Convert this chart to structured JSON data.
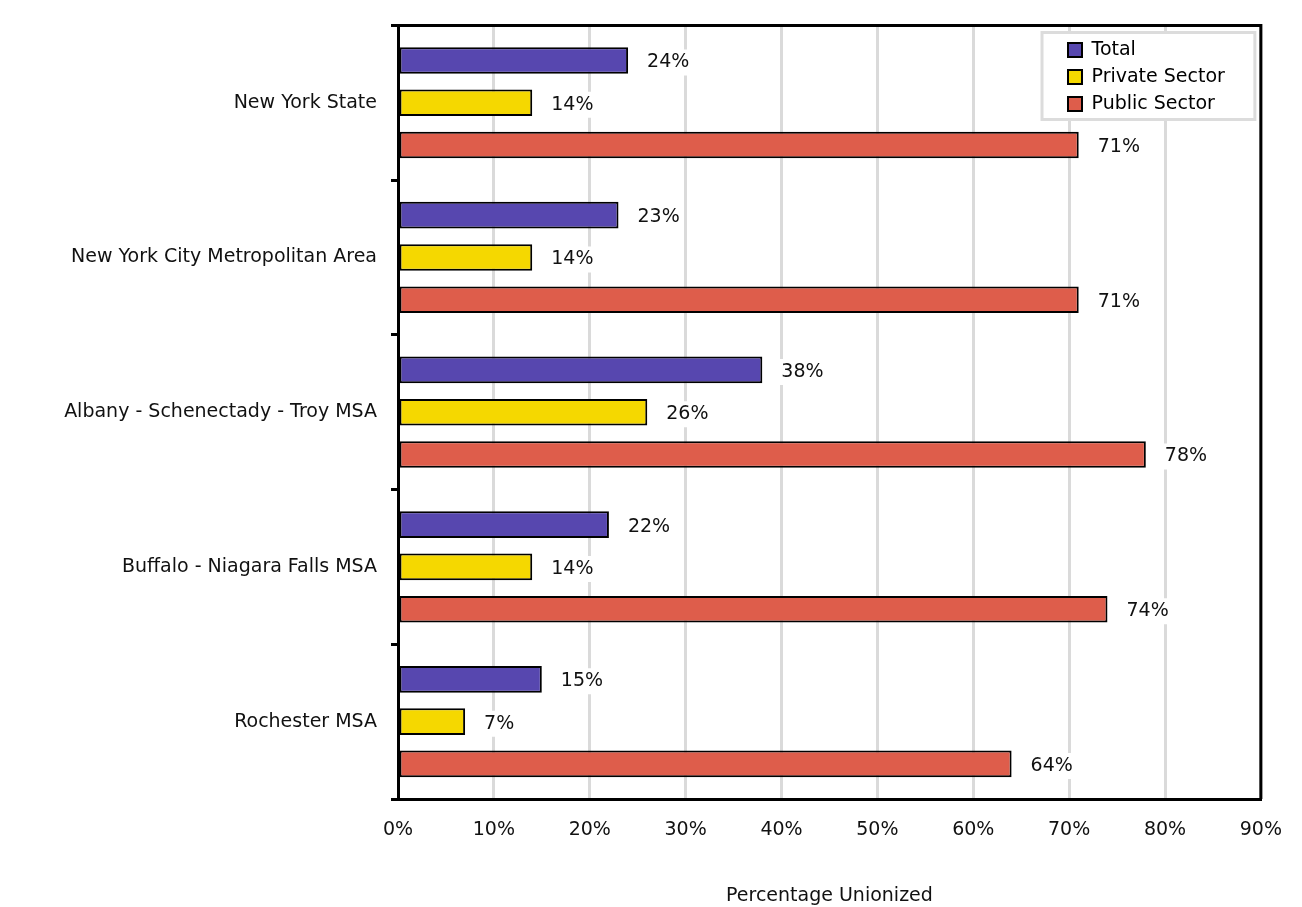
{
  "chart_data": {
    "type": "bar",
    "orientation": "horizontal",
    "categories": [
      "New York State",
      "New York City Metropolitan Area",
      "Albany - Schenectady - Troy MSA",
      "Buffalo - Niagara Falls MSA",
      "Rochester MSA"
    ],
    "series": [
      {
        "name": "Total",
        "color": "#5747af",
        "values": [
          24,
          23,
          38,
          22,
          15
        ],
        "value_labels": [
          "24%",
          "23%",
          "38%",
          "22%",
          "15%"
        ]
      },
      {
        "name": "Private Sector",
        "color": "#f5d800",
        "values": [
          14,
          14,
          26,
          14,
          7
        ],
        "value_labels": [
          "14%",
          "14%",
          "26%",
          "14%",
          "7%"
        ]
      },
      {
        "name": "Public Sector",
        "color": "#de5d4b",
        "values": [
          71,
          71,
          78,
          74,
          64
        ],
        "value_labels": [
          "71%",
          "71%",
          "78%",
          "74%",
          "64%"
        ]
      }
    ],
    "xlabel": "Percentage Unionized",
    "xlim": [
      0,
      90
    ],
    "xticks": [
      {
        "value": 0,
        "label": "0%"
      },
      {
        "value": 10,
        "label": "10%"
      },
      {
        "value": 20,
        "label": "20%"
      },
      {
        "value": 30,
        "label": "30%"
      },
      {
        "value": 40,
        "label": "40%"
      },
      {
        "value": 50,
        "label": "50%"
      },
      {
        "value": 60,
        "label": "60%"
      },
      {
        "value": 70,
        "label": "70%"
      },
      {
        "value": 80,
        "label": "80%"
      },
      {
        "value": 90,
        "label": "90%"
      }
    ],
    "grid": "x",
    "legend": "top right"
  }
}
